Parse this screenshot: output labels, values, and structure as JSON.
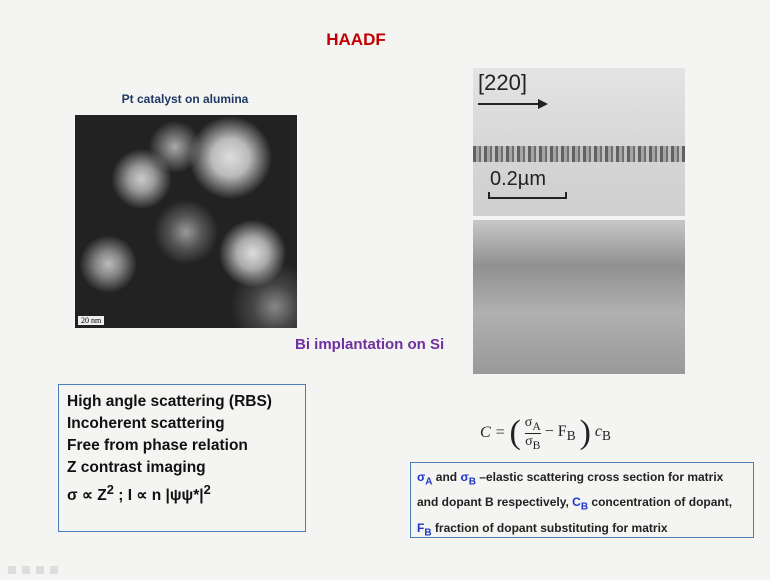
{
  "title": "HAADF",
  "left_image": {
    "caption": "Pt catalyst on alumina",
    "scale_label": "20 nm"
  },
  "right_image": {
    "direction_label": "[220]",
    "scale_label": "0.2µm",
    "caption": "Bi implantation on Si"
  },
  "properties": {
    "lines": [
      "High angle scattering (RBS)",
      "Incoherent scattering",
      "Free from phase relation",
      "Z contrast imaging"
    ],
    "formula": {
      "a": "σ ∝ Z",
      "b": "2",
      "c": "; I ∝ n",
      "d": "|ψψ*|",
      "e": "2"
    }
  },
  "equation": {
    "lhs": "C =",
    "num": "σ",
    "num_sub": "A",
    "den": "σ",
    "den_sub": "B",
    "minus": "− F",
    "minus_sub": "B",
    "tail": "c",
    "tail_sub": "B"
  },
  "note": [
    "σ",
    "A",
    " and ",
    "σ",
    "B",
    " –elastic scattering cross section for matrix and dopant B respectively, ",
    "C",
    "B",
    " concentration of dopant, ",
    "F",
    "B",
    " fraction of dopant substituting for matrix"
  ]
}
